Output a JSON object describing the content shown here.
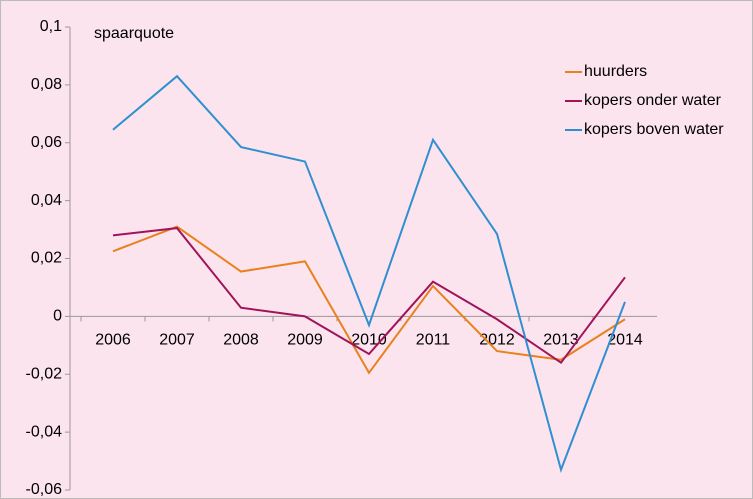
{
  "chart_data": {
    "type": "line",
    "y_label": "spaarquote",
    "categories": [
      "2006",
      "2007",
      "2008",
      "2009",
      "2010",
      "2011",
      "2012",
      "2013",
      "2014"
    ],
    "series": [
      {
        "name": "huurders",
        "color": "#e8821e",
        "values": [
          0.0225,
          0.031,
          0.0155,
          0.019,
          -0.0195,
          0.0105,
          -0.012,
          -0.015,
          -0.001
        ]
      },
      {
        "name": "kopers onder water",
        "color": "#a0145a",
        "values": [
          0.028,
          0.0305,
          0.003,
          0,
          -0.013,
          0.012,
          -0.001,
          -0.016,
          0.0135
        ]
      },
      {
        "name": "kopers boven water",
        "color": "#2f8fd0",
        "values": [
          0.0645,
          0.083,
          0.0585,
          0.0535,
          -0.003,
          0.061,
          0.0285,
          -0.053,
          0.005
        ]
      }
    ],
    "ylim": [
      -0.06,
      0.1
    ],
    "yticks": [
      {
        "value": -0.06,
        "label": "-0,06"
      },
      {
        "value": -0.04,
        "label": "-0,04"
      },
      {
        "value": -0.02,
        "label": "-0,02"
      },
      0,
      {
        "value": 0.02,
        "label": "0,02"
      },
      {
        "value": 0.04,
        "label": "0,04"
      },
      {
        "value": 0.06,
        "label": "0,06"
      },
      {
        "value": 0.08,
        "label": "0,08"
      },
      {
        "value": 0.1,
        "label": "0,1"
      }
    ],
    "grid": false,
    "legend": "top-right"
  }
}
